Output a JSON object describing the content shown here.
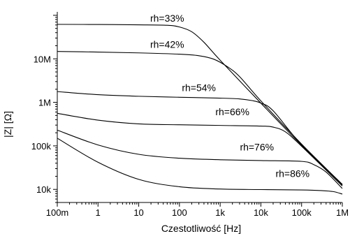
{
  "chart_data": {
    "type": "line",
    "xlabel": "Czestotliwość [Hz]",
    "ylabel": "|Z| [Ω]",
    "x_scale": "log",
    "y_scale": "log",
    "xlim": [
      0.1,
      1000000
    ],
    "ylim": [
      5000,
      120000000
    ],
    "x_ticks": [
      {
        "value": 0.1,
        "label": "100m"
      },
      {
        "value": 1,
        "label": "1"
      },
      {
        "value": 10,
        "label": "10"
      },
      {
        "value": 100,
        "label": "100"
      },
      {
        "value": 1000,
        "label": "1k"
      },
      {
        "value": 10000,
        "label": "10k"
      },
      {
        "value": 100000,
        "label": "100k"
      },
      {
        "value": 1000000,
        "label": "1M"
      }
    ],
    "y_ticks": [
      {
        "value": 10000,
        "label": "10k"
      },
      {
        "value": 100000,
        "label": "100k"
      },
      {
        "value": 1000000,
        "label": "1M"
      },
      {
        "value": 10000000,
        "label": "10M"
      }
    ],
    "grid": false,
    "legend": "none",
    "series": [
      {
        "name": "rh=33%",
        "label_at": [
          50,
          62000000
        ],
        "points": [
          [
            0.1,
            62000000
          ],
          [
            1,
            61500000
          ],
          [
            10,
            60500000
          ],
          [
            50,
            59000000
          ],
          [
            100,
            54000000
          ],
          [
            200,
            42000000
          ],
          [
            400,
            24000000
          ],
          [
            1000,
            9300000
          ],
          [
            10000,
            960000
          ],
          [
            100000,
            103000
          ],
          [
            1000000,
            12500
          ]
        ]
      },
      {
        "name": "rh=42%",
        "label_at": [
          50,
          15500000
        ],
        "points": [
          [
            0.1,
            14800000
          ],
          [
            1,
            14300000
          ],
          [
            10,
            13700000
          ],
          [
            100,
            12800000
          ],
          [
            300,
            11800000
          ],
          [
            700,
            9800000
          ],
          [
            1500,
            6600000
          ],
          [
            3000,
            3900000
          ],
          [
            10000,
            1080000
          ],
          [
            100000,
            110000
          ],
          [
            1000000,
            13000
          ]
        ]
      },
      {
        "name": "rh=54%",
        "label_at": [
          300,
          1550000
        ],
        "points": [
          [
            0.1,
            1770000
          ],
          [
            1,
            1500000
          ],
          [
            10,
            1380000
          ],
          [
            100,
            1310000
          ],
          [
            1000,
            1250000
          ],
          [
            3000,
            1200000
          ],
          [
            6000,
            1100000
          ],
          [
            10000,
            960000
          ],
          [
            20000,
            640000
          ],
          [
            100000,
            105000
          ],
          [
            1000000,
            13000
          ]
        ]
      },
      {
        "name": "rh=66%",
        "label_at": [
          2000,
          435000
        ],
        "points": [
          [
            0.1,
            560000
          ],
          [
            1,
            390000
          ],
          [
            10,
            320000
          ],
          [
            100,
            305000
          ],
          [
            1000,
            295000
          ],
          [
            10000,
            285000
          ],
          [
            20000,
            270000
          ],
          [
            40000,
            210000
          ],
          [
            100000,
            98000
          ],
          [
            1000000,
            12000
          ]
        ]
      },
      {
        "name": "rh=76%",
        "label_at": [
          8000,
          68000
        ],
        "points": [
          [
            0.1,
            230000
          ],
          [
            1,
            105000
          ],
          [
            10,
            64000
          ],
          [
            100,
            52000
          ],
          [
            1000,
            48000
          ],
          [
            10000,
            46000
          ],
          [
            100000,
            44000
          ],
          [
            200000,
            37000
          ],
          [
            400000,
            25000
          ],
          [
            1000000,
            10500
          ]
        ]
      },
      {
        "name": "rh=86%",
        "label_at": [
          60000,
          16500
        ],
        "points": [
          [
            0.1,
            150000
          ],
          [
            1,
            42000
          ],
          [
            10,
            17000
          ],
          [
            100,
            11500
          ],
          [
            1000,
            10200
          ],
          [
            10000,
            9900
          ],
          [
            100000,
            9700
          ],
          [
            300000,
            9400
          ],
          [
            600000,
            8900
          ],
          [
            1000000,
            7800
          ]
        ]
      }
    ]
  }
}
